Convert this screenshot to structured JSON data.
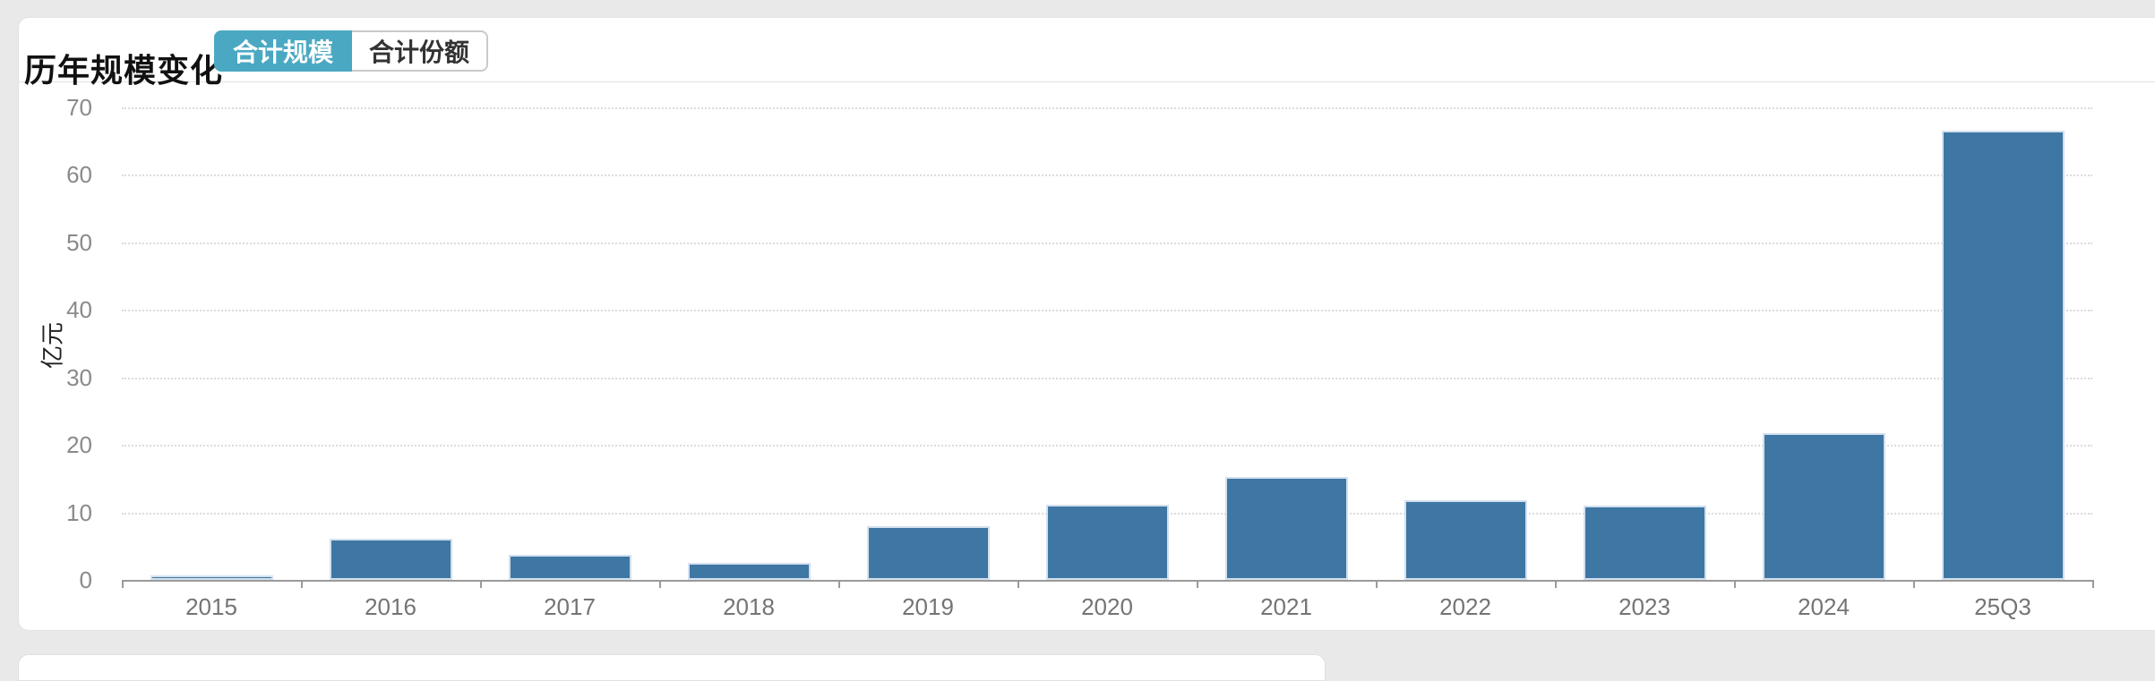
{
  "card": {
    "title": "历年规模变化",
    "tabs": [
      {
        "label": "合计规模",
        "active": true
      },
      {
        "label": "合计份额",
        "active": false
      }
    ]
  },
  "chart_data": {
    "type": "bar",
    "title": "历年规模变化",
    "categories": [
      "2015",
      "2016",
      "2017",
      "2018",
      "2019",
      "2020",
      "2021",
      "2022",
      "2023",
      "2024",
      "25Q3"
    ],
    "values": [
      0.7,
      6.1,
      3.7,
      2.5,
      7.9,
      11.2,
      15.2,
      11.8,
      11,
      21.8,
      66.5
    ],
    "series_name": "合计规模",
    "xlabel": "",
    "ylabel": "亿元",
    "ylim": [
      0,
      70
    ],
    "y_ticks": [
      0,
      10,
      20,
      30,
      40,
      50,
      60,
      70
    ],
    "grid": "horizontal-dotted",
    "legend": "none",
    "bar_color": "#3e76a4",
    "bar_border_color": "#d3e0ee"
  },
  "colors": {
    "active_tab": "#4aa8c2",
    "page_background": "#e9e9e9",
    "axis_line": "#9a9a9a",
    "tick_text": "#8a8a8a"
  }
}
